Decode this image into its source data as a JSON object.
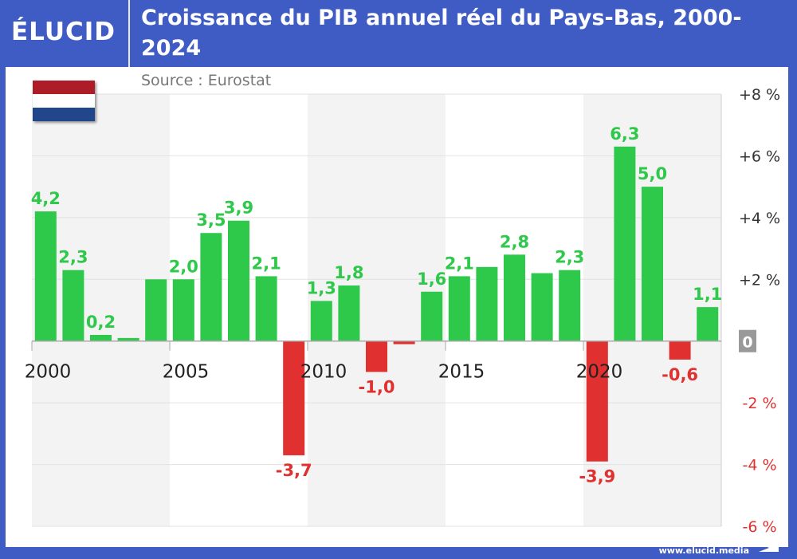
{
  "header": {
    "logo": "ÉLUCID",
    "title": "Croissance du PIB annuel réel du Pays-Bas, 2000-2024",
    "source": "Source : Eurostat"
  },
  "footer": {
    "url": "www.elucid.media"
  },
  "colors": {
    "brand": "#3f5bc4",
    "positive": "#2ec84a",
    "negative": "#e03030",
    "flag": [
      "#ae1c28",
      "#ffffff",
      "#21468b"
    ]
  },
  "chart_data": {
    "type": "bar",
    "title": "Croissance du PIB annuel réel du Pays-Bas, 2000-2024",
    "categories": [
      2000,
      2001,
      2002,
      2003,
      2004,
      2005,
      2006,
      2007,
      2008,
      2009,
      2010,
      2011,
      2012,
      2013,
      2014,
      2015,
      2016,
      2017,
      2018,
      2019,
      2020,
      2021,
      2022,
      2023,
      2024
    ],
    "values": [
      4.2,
      2.3,
      0.2,
      0.1,
      2.0,
      2.0,
      3.5,
      3.9,
      2.1,
      -3.7,
      1.3,
      1.8,
      -1.0,
      -0.1,
      1.6,
      2.1,
      2.4,
      2.8,
      2.2,
      2.3,
      -3.9,
      6.3,
      5.0,
      -0.6,
      1.1
    ],
    "data_labels": {
      "2000": "4,2",
      "2001": "2,3",
      "2002": "0,2",
      "2005": "2,0",
      "2006": "3,5",
      "2007": "3,9",
      "2008": "2,1",
      "2009": "-3,7",
      "2010": "1,3",
      "2011": "1,8",
      "2012": "-1,0",
      "2014": "1,6",
      "2015": "2,1",
      "2017": "2,8",
      "2019": "2,3",
      "2020": "-3,9",
      "2021": "6,3",
      "2022": "5,0",
      "2023": "-0,6",
      "2024": "1,1"
    },
    "x_tick_labels": [
      "2000",
      "2005",
      "2010",
      "2015",
      "2020"
    ],
    "y_tick_labels": [
      "+8 %",
      "+6 %",
      "+4 %",
      "+2 %",
      "0",
      "-2 %",
      "-4 %",
      "-6 %"
    ],
    "y_ticks": [
      8,
      6,
      4,
      2,
      0,
      -2,
      -4,
      -6
    ],
    "ylim": [
      -6,
      8
    ],
    "grid": true,
    "legend": "none"
  }
}
